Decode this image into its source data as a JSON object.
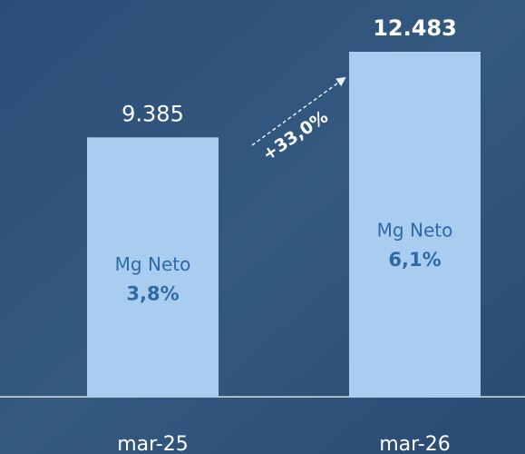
{
  "chart_data": {
    "type": "bar",
    "categories": [
      "mar-25",
      "mar-26"
    ],
    "values": [
      9385,
      12483
    ],
    "value_labels": [
      "9.385",
      "12.483"
    ],
    "color": "#a9cdf0",
    "inner_labels": [
      {
        "name": "Mg Neto",
        "value": "3,8%"
      },
      {
        "name": "Mg Neto",
        "value": "6,1%"
      }
    ],
    "annotation": "+33,0%"
  }
}
